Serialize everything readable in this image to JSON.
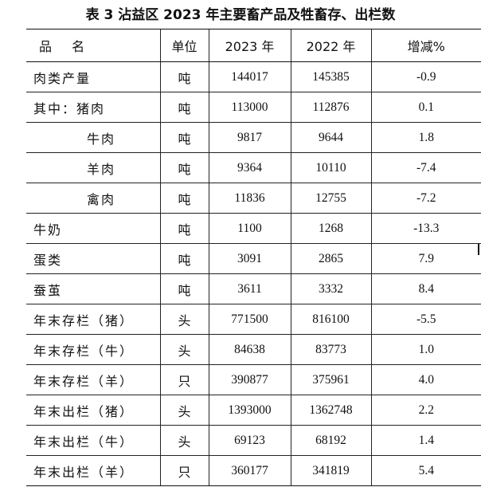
{
  "title": "表 3   沾益区 2023 年主要畜产品及牲畜存、出栏数",
  "headers": [
    "品  名",
    "单位",
    "2023 年",
    "2022 年",
    "增减%"
  ],
  "rows": [
    {
      "name": "肉类产量",
      "unit": "吨",
      "y2023": "144017",
      "y2022": "145385",
      "change": "-0.9"
    },
    {
      "name": "其中：猪肉",
      "unit": "吨",
      "y2023": "113000",
      "y2022": "112876",
      "change": "0.1"
    },
    {
      "name": "牛肉",
      "unit": "吨",
      "y2023": "9817",
      "y2022": "9644",
      "change": "1.8"
    },
    {
      "name": "羊肉",
      "unit": "吨",
      "y2023": "9364",
      "y2022": "10110",
      "change": "-7.4"
    },
    {
      "name": "禽肉",
      "unit": "吨",
      "y2023": "11836",
      "y2022": "12755",
      "change": "-7.2"
    },
    {
      "name": "牛奶",
      "unit": "吨",
      "y2023": "1100",
      "y2022": "1268",
      "change": "-13.3"
    },
    {
      "name": "蛋类",
      "unit": "吨",
      "y2023": "3091",
      "y2022": "2865",
      "change": "7.9"
    },
    {
      "name": "蚕茧",
      "unit": "吨",
      "y2023": "3611",
      "y2022": "3332",
      "change": "8.4"
    },
    {
      "name": "年末存栏（猪）",
      "unit": "头",
      "y2023": "771500",
      "y2022": "816100",
      "change": "-5.5"
    },
    {
      "name": "年末存栏（牛）",
      "unit": "头",
      "y2023": "84638",
      "y2022": "83773",
      "change": "1.0"
    },
    {
      "name": "年末存栏（羊）",
      "unit": "只",
      "y2023": "390877",
      "y2022": "375961",
      "change": "4.0"
    },
    {
      "name": "年末出栏（猪）",
      "unit": "头",
      "y2023": "1393000",
      "y2022": "1362748",
      "change": "2.2"
    },
    {
      "name": "年末出栏（牛）",
      "unit": "头",
      "y2023": "69123",
      "y2022": "68192",
      "change": "1.4"
    },
    {
      "name": "年末出栏（羊）",
      "unit": "只",
      "y2023": "360177",
      "y2022": "341819",
      "change": "5.4"
    }
  ]
}
